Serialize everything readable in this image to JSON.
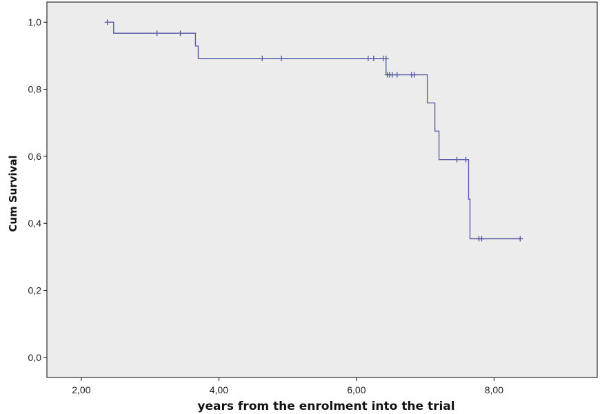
{
  "chart_data": {
    "type": "line",
    "subtype": "kaplan-meier-step",
    "xlabel": "years from the enrolment into the trial",
    "ylabel": "Cum Survival",
    "xlim": [
      1.5,
      9.5
    ],
    "ylim": [
      -0.06,
      1.06
    ],
    "x_ticks": [
      2.0,
      4.0,
      6.0,
      8.0
    ],
    "x_tick_labels": [
      "2,00",
      "4,00",
      "6,00",
      "8,00"
    ],
    "y_ticks": [
      0.0,
      0.2,
      0.4,
      0.6,
      0.8,
      1.0
    ],
    "y_tick_labels": [
      "0,0",
      "0,2",
      "0,4",
      "0,6",
      "0,8",
      "1,0"
    ],
    "grid": false,
    "colors": {
      "plot_background": "#ececec",
      "line": "#5a5fa8",
      "axis": "#000000"
    },
    "series": [
      {
        "steps": [
          [
            2.35,
            1.0
          ],
          [
            2.47,
            0.967
          ],
          [
            3.66,
            0.929
          ],
          [
            3.7,
            0.892
          ],
          [
            6.43,
            0.843
          ],
          [
            7.03,
            0.759
          ],
          [
            7.14,
            0.675
          ],
          [
            7.2,
            0.59
          ],
          [
            7.63,
            0.472
          ],
          [
            7.65,
            0.354
          ],
          [
            8.38,
            0.354
          ]
        ],
        "censored": [
          [
            2.38,
            1.0
          ],
          [
            3.1,
            0.967
          ],
          [
            3.44,
            0.967
          ],
          [
            4.63,
            0.892
          ],
          [
            4.91,
            0.892
          ],
          [
            6.17,
            0.892
          ],
          [
            6.25,
            0.892
          ],
          [
            6.39,
            0.892
          ],
          [
            6.43,
            0.892
          ],
          [
            6.45,
            0.843
          ],
          [
            6.48,
            0.843
          ],
          [
            6.52,
            0.843
          ],
          [
            6.59,
            0.843
          ],
          [
            6.8,
            0.843
          ],
          [
            6.84,
            0.843
          ],
          [
            7.46,
            0.59
          ],
          [
            7.59,
            0.59
          ],
          [
            7.78,
            0.354
          ],
          [
            7.82,
            0.354
          ],
          [
            8.38,
            0.354
          ]
        ]
      }
    ]
  }
}
